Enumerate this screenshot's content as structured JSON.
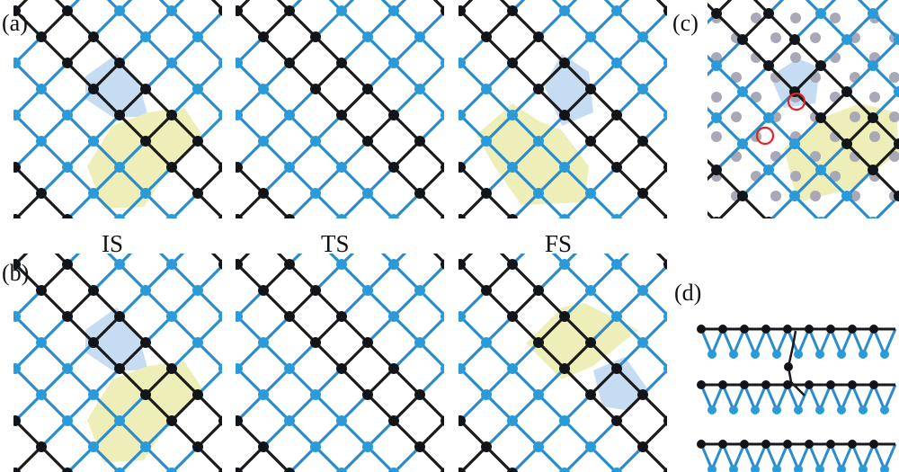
{
  "figure": {
    "panel_labels": {
      "a": "(a)",
      "b": "(b)",
      "c": "(c)",
      "d": "(d)"
    },
    "state_labels": {
      "initial": "IS",
      "transition": "TS",
      "final": "FS"
    },
    "colors": {
      "black_atom": "#111418",
      "blue_atom": "#2a9ad8",
      "black_bond": "#1a1a1a",
      "blue_bond": "#2a8ccc",
      "gray_atom": "#a8a8b6",
      "highlight_blue": "#c5dcf3",
      "highlight_yellow": "#eeeeb8",
      "marker_ring": "#e02424"
    }
  }
}
